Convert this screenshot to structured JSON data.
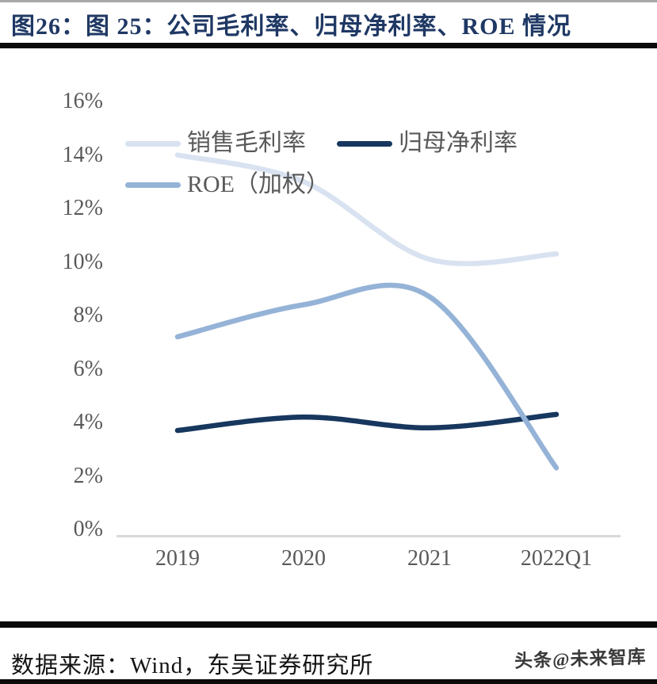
{
  "page": {
    "title": "图26：图 25：公司毛利率、归母净利率、ROE 情况",
    "source_note": "数据来源：Wind，东吴证券研究所",
    "watermark": "头条@未来智库"
  },
  "colors": {
    "title_text": "#1f3864",
    "axis_text": "#595959",
    "axis_line": "#d9d9d9",
    "heavy_rule": "#0a0a0a",
    "top_rule": "#a8a8a8"
  },
  "chart_data": {
    "type": "line",
    "smooth": true,
    "grid": false,
    "legend_position": "top-left",
    "categories": [
      "2019",
      "2020",
      "2021",
      "2022Q1"
    ],
    "series": [
      {
        "name": "销售毛利率",
        "values": [
          14.0,
          13.0,
          10.1,
          10.3
        ],
        "color": "#d9e2f0"
      },
      {
        "name": "归母净利率",
        "values": [
          3.7,
          4.2,
          3.8,
          4.3
        ],
        "color": "#17375e"
      },
      {
        "name": "ROE（加权）",
        "values": [
          7.2,
          8.4,
          8.7,
          2.3
        ],
        "color": "#95b3d7"
      }
    ],
    "ylim": [
      0,
      16
    ],
    "ytick_labels": [
      "0%",
      "2%",
      "4%",
      "6%",
      "8%",
      "10%",
      "12%",
      "14%",
      "16%"
    ],
    "xlabel": "",
    "ylabel": ""
  }
}
